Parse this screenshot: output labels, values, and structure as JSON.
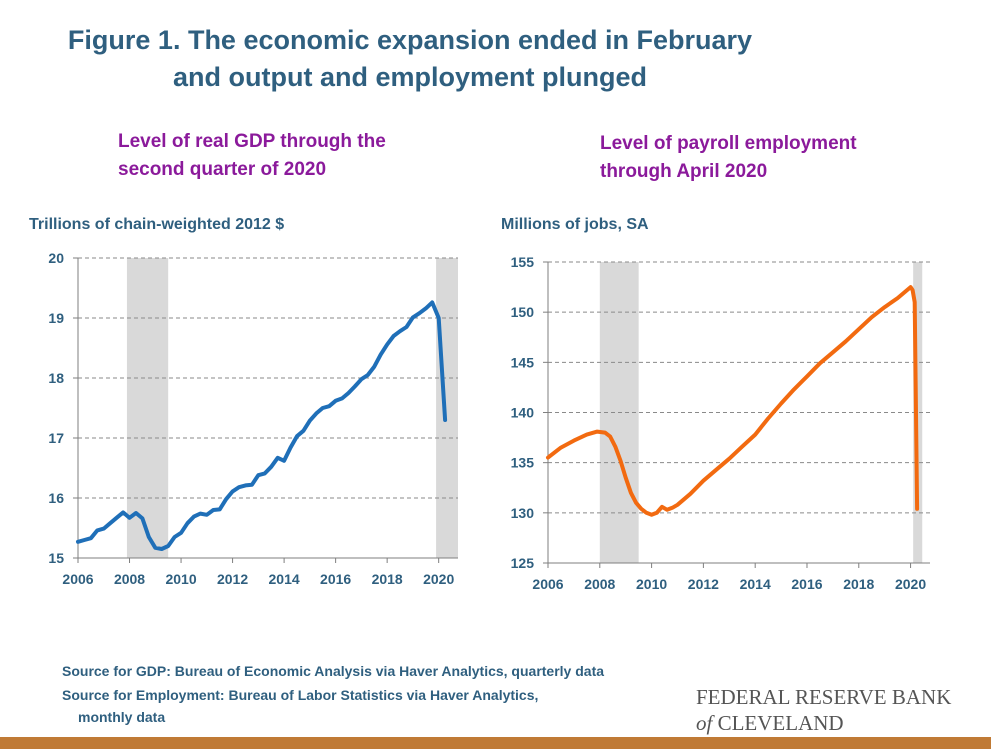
{
  "figure": {
    "title_line1": "Figure 1. The economic expansion ended in February",
    "title_line2": "and output and employment plunged"
  },
  "sources": {
    "gdp": "Source for GDP: Bureau of Economic Analysis via Haver Analytics, quarterly data",
    "employment_line1": "Source for Employment: Bureau of Labor Statistics via Haver Analytics,",
    "employment_line2": "monthly data"
  },
  "logo": {
    "line1": "FEDERAL RESERVE BANK",
    "line2_of": "of",
    "line2_name": "CLEVELAND"
  },
  "colors": {
    "title": "#2f5f7f",
    "subtitle": "#8b1a9b",
    "gdp_line": "#1f6fb8",
    "jobs_line": "#f26a10",
    "recession": "#d9d9d9",
    "bar": "#c07a35"
  },
  "chart_data": [
    {
      "type": "line",
      "title_line1": "Level of real GDP through the",
      "title_line2": "second quarter of 2020",
      "ylabel": "Trillions of chain-weighted 2012 $",
      "xlim": [
        2006,
        2020.75
      ],
      "ylim": [
        15,
        20
      ],
      "x_ticks": [
        2006,
        2008,
        2010,
        2012,
        2014,
        2016,
        2018,
        2020
      ],
      "y_ticks": [
        15,
        16,
        17,
        18,
        19,
        20
      ],
      "grid": "horizontal dashed",
      "recessions": [
        [
          2007.9,
          2009.5
        ],
        [
          2019.9,
          2020.75
        ]
      ],
      "series": [
        {
          "color": "#1f6fb8",
          "x": [
            2006.0,
            2006.25,
            2006.5,
            2006.75,
            2007.0,
            2007.25,
            2007.5,
            2007.75,
            2008.0,
            2008.25,
            2008.5,
            2008.75,
            2009.0,
            2009.25,
            2009.5,
            2009.75,
            2010.0,
            2010.25,
            2010.5,
            2010.75,
            2011.0,
            2011.25,
            2011.5,
            2011.75,
            2012.0,
            2012.25,
            2012.5,
            2012.75,
            2013.0,
            2013.25,
            2013.5,
            2013.75,
            2014.0,
            2014.25,
            2014.5,
            2014.75,
            2015.0,
            2015.25,
            2015.5,
            2015.75,
            2016.0,
            2016.25,
            2016.5,
            2016.75,
            2017.0,
            2017.25,
            2017.5,
            2017.75,
            2018.0,
            2018.25,
            2018.5,
            2018.75,
            2019.0,
            2019.25,
            2019.5,
            2019.75,
            2020.0,
            2020.25
          ],
          "values": [
            15.27,
            15.3,
            15.33,
            15.46,
            15.49,
            15.58,
            15.67,
            15.76,
            15.67,
            15.75,
            15.66,
            15.35,
            15.17,
            15.15,
            15.2,
            15.35,
            15.42,
            15.58,
            15.69,
            15.74,
            15.72,
            15.8,
            15.81,
            15.98,
            16.11,
            16.18,
            16.21,
            16.22,
            16.38,
            16.41,
            16.52,
            16.67,
            16.62,
            16.84,
            17.03,
            17.12,
            17.29,
            17.41,
            17.5,
            17.53,
            17.62,
            17.66,
            17.75,
            17.86,
            17.98,
            18.05,
            18.19,
            18.39,
            18.56,
            18.7,
            18.78,
            18.85,
            19.01,
            19.08,
            19.16,
            19.26,
            19.0,
            17.3
          ]
        }
      ]
    },
    {
      "type": "line",
      "title_line1": "Level of payroll employment",
      "title_line2": "through April 2020",
      "ylabel": "Millions of jobs, SA",
      "xlim": [
        2006,
        2020.75
      ],
      "ylim": [
        125,
        155
      ],
      "x_ticks": [
        2006,
        2008,
        2010,
        2012,
        2014,
        2016,
        2018,
        2020
      ],
      "y_ticks": [
        125,
        130,
        135,
        140,
        145,
        150,
        155
      ],
      "grid": "horizontal dashed",
      "recessions": [
        [
          2008.0,
          2009.5
        ],
        [
          2020.1,
          2020.45
        ]
      ],
      "series": [
        {
          "color": "#f26a10",
          "x": [
            2006.0,
            2006.5,
            2007.0,
            2007.5,
            2007.9,
            2008.2,
            2008.4,
            2008.6,
            2008.8,
            2009.0,
            2009.2,
            2009.4,
            2009.6,
            2009.8,
            2010.0,
            2010.2,
            2010.4,
            2010.6,
            2010.8,
            2011.0,
            2011.5,
            2012.0,
            2012.5,
            2013.0,
            2013.5,
            2014.0,
            2014.5,
            2015.0,
            2015.5,
            2016.0,
            2016.5,
            2017.0,
            2017.5,
            2018.0,
            2018.5,
            2019.0,
            2019.5,
            2020.0,
            2020.08,
            2020.16,
            2020.25
          ],
          "values": [
            135.5,
            136.5,
            137.2,
            137.8,
            138.1,
            138.0,
            137.6,
            136.6,
            135.2,
            133.5,
            132.0,
            131.0,
            130.4,
            130.0,
            129.8,
            130.0,
            130.6,
            130.3,
            130.5,
            130.8,
            131.9,
            133.2,
            134.3,
            135.4,
            136.6,
            137.8,
            139.4,
            140.9,
            142.3,
            143.6,
            144.9,
            146.0,
            147.1,
            148.3,
            149.5,
            150.5,
            151.4,
            152.5,
            152.2,
            151.0,
            130.4
          ]
        }
      ]
    }
  ]
}
